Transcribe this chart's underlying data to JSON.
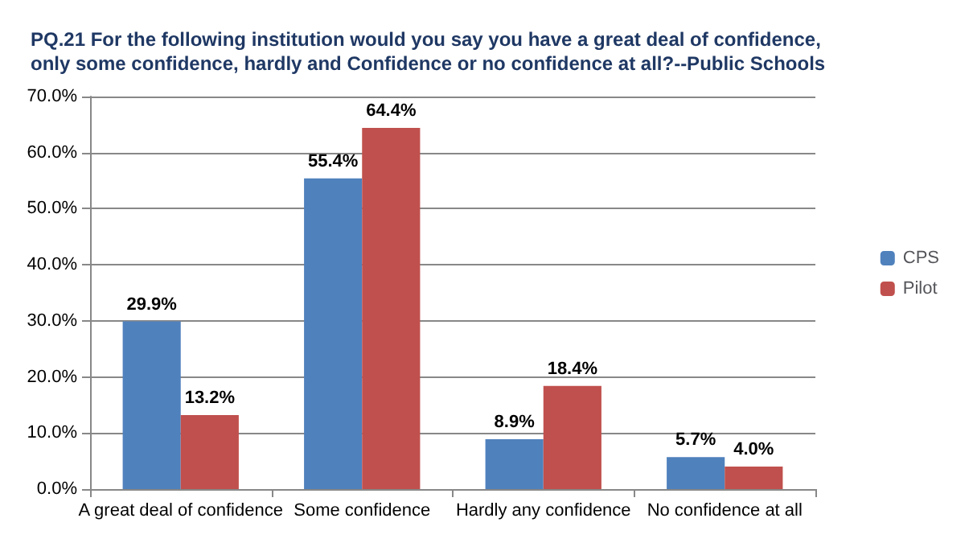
{
  "chart_data": {
    "type": "bar",
    "title": "PQ.21 For the following institution would you say you have a great deal of confidence,\nonly some confidence, hardly and Confidence or no confidence at all?--Public Schools",
    "categories": [
      "A great deal of confidence",
      "Some confidence",
      "Hardly any confidence",
      "No confidence at all"
    ],
    "series": [
      {
        "name": "CPS",
        "color": "#4f81bd",
        "values": [
          29.9,
          55.4,
          8.9,
          5.7
        ],
        "value_labels": [
          "29.9%",
          "55.4%",
          "8.9%",
          "5.7%"
        ]
      },
      {
        "name": "Pilot",
        "color": "#c0504d",
        "values": [
          13.2,
          64.4,
          18.4,
          4.0
        ],
        "value_labels": [
          "13.2%",
          "64.4%",
          "18.4%",
          "4.0%"
        ]
      }
    ],
    "ylim": [
      0,
      70
    ],
    "yticks": [
      {
        "value": 0,
        "label": "0.0%"
      },
      {
        "value": 10,
        "label": "10.0%"
      },
      {
        "value": 20,
        "label": "20.0%"
      },
      {
        "value": 30,
        "label": "30.0%"
      },
      {
        "value": 40,
        "label": "40.0%"
      },
      {
        "value": 50,
        "label": "50.0%"
      },
      {
        "value": 60,
        "label": "60.0%"
      },
      {
        "value": 70,
        "label": "70.0%"
      }
    ],
    "grid": "y",
    "legend": "right"
  }
}
